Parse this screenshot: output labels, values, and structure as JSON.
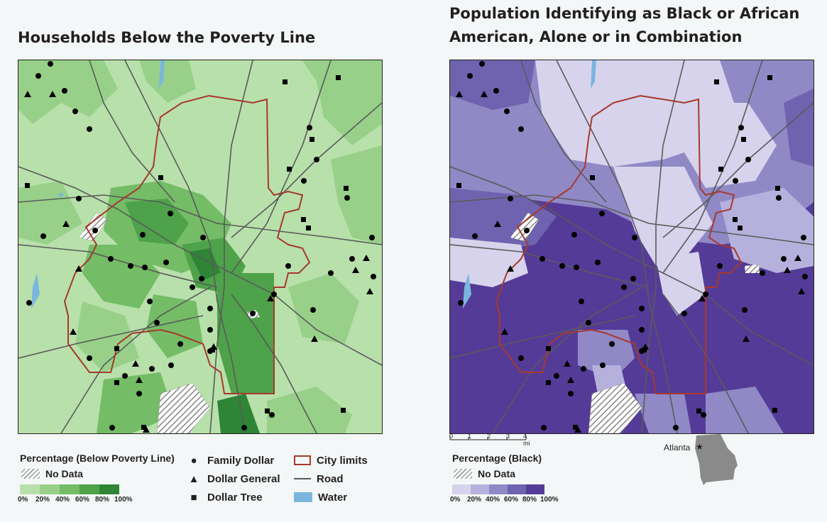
{
  "left_panel": {
    "title": "Households Below the Poverty Line",
    "legend_heading": "Percentage (Below Poverty Line)",
    "no_data": "No Data",
    "ticks": [
      "0%",
      "20%",
      "40%",
      "60%",
      "80%",
      "100%"
    ],
    "colors": [
      "#b8e0ab",
      "#98d08a",
      "#74bc66",
      "#4ea24a",
      "#2e8535"
    ]
  },
  "right_panel": {
    "title_line1": "Population Identifying as Black or African",
    "title_line2": "American, Alone or in Combination",
    "legend_heading": "Percentage (Black)",
    "no_data": "No Data",
    "ticks": [
      "0%",
      "20%",
      "40%",
      "60%",
      "80%",
      "100%"
    ],
    "colors": [
      "#d7d3ec",
      "#b6b1dc",
      "#9089c6",
      "#6f63b0",
      "#553b98"
    ],
    "scale_labels": [
      "0",
      "1",
      "2",
      "3",
      "4 mi"
    ],
    "locator_label": "Atlanta"
  },
  "symbols": {
    "family_dollar": "Family Dollar",
    "dollar_general": "Dollar General",
    "dollar_tree": "Dollar Tree"
  },
  "layers": {
    "city_limits": "City limits",
    "road": "Road",
    "water": "Water"
  },
  "style_colors": {
    "city_limit": "#a6392d",
    "road": "#5a5a5a",
    "water": "#7ab6dd"
  }
}
